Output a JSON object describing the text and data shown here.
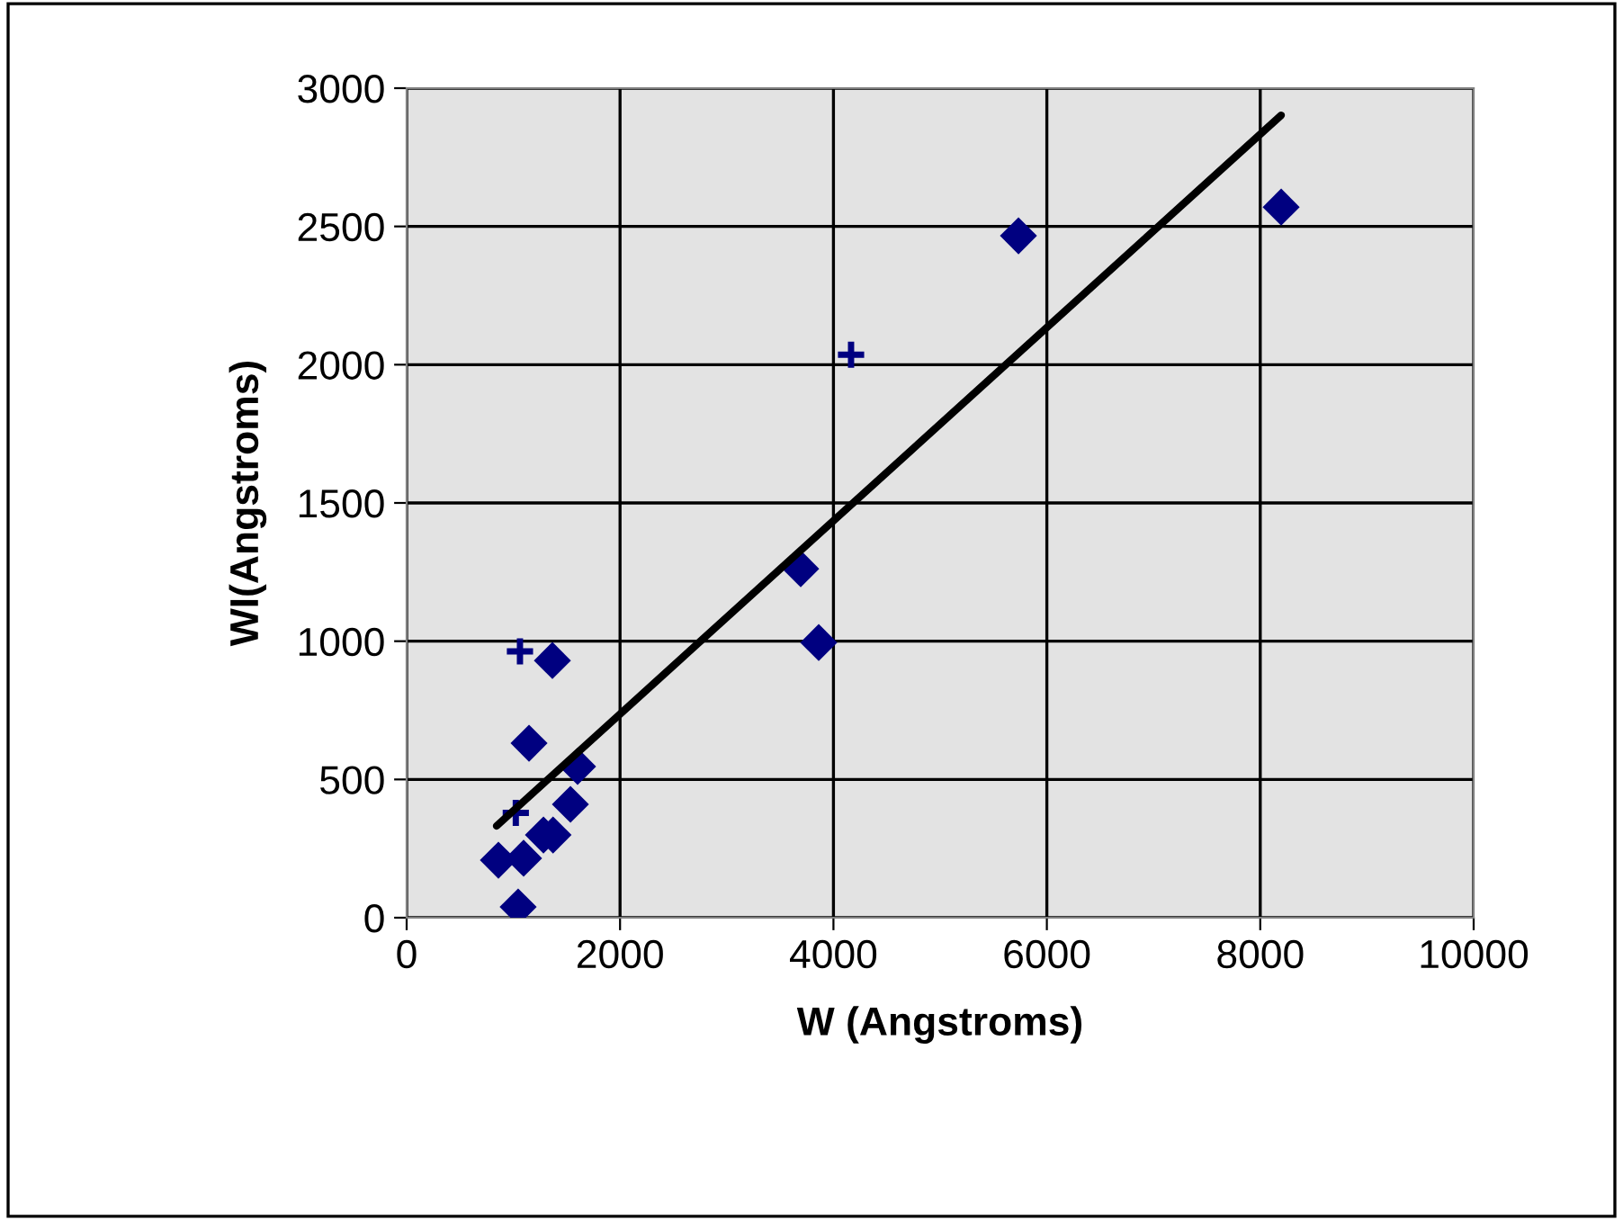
{
  "chart_data": {
    "type": "scatter",
    "xlabel": "W (Angstroms)",
    "ylabel": "WI(Angstroms)",
    "xlim": [
      0,
      10000
    ],
    "xticks": [
      0,
      2000,
      4000,
      6000,
      8000,
      10000
    ],
    "ylim": [
      0,
      3000
    ],
    "yticks": [
      0,
      500,
      1000,
      1500,
      2000,
      2500,
      3000
    ],
    "grid": true,
    "series": [
      {
        "marker": "diamond",
        "color": "#000080",
        "x": [
          5734,
          8196,
          3693,
          3862,
          1366,
          1147,
          1602,
          1535,
          1372,
          1282,
          860,
          1096,
          1045
        ],
        "values": [
          2466,
          2570,
          1262,
          995,
          930,
          631,
          547,
          410,
          299,
          299,
          208,
          215,
          39
        ]
      },
      {
        "marker": "cross",
        "color": "#000080",
        "x": [
          1062,
          1023,
          4165
        ],
        "values": [
          963,
          379,
          2036
        ]
      },
      {
        "type": "line",
        "marker": "none",
        "line_style": "solid",
        "color": "#000000",
        "x": [
          843,
          8196
        ],
        "values": [
          332,
          2902
        ]
      }
    ]
  }
}
